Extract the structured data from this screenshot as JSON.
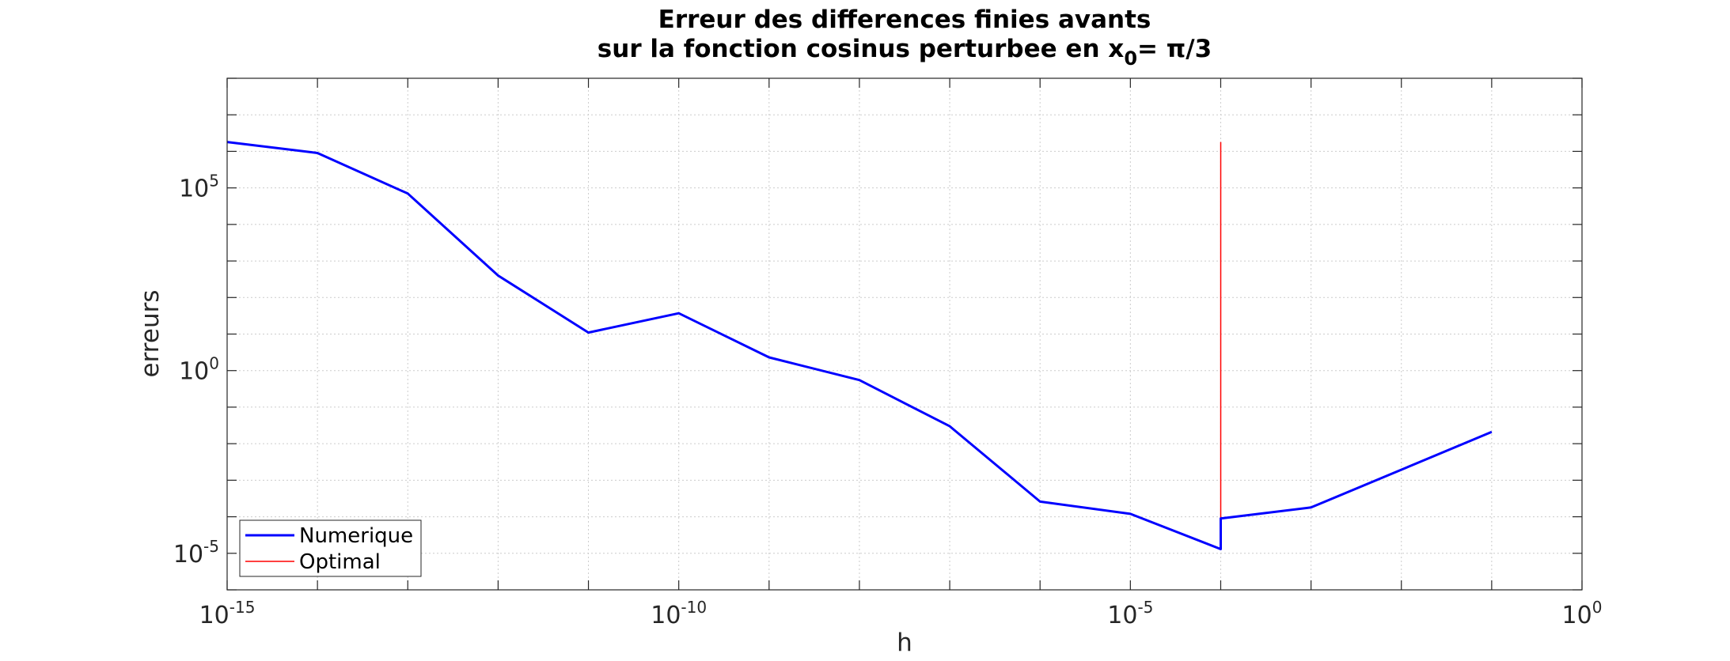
{
  "chart_data": {
    "type": "line",
    "title_line1": "Erreur des differences finies avants",
    "title_line2_prefix": "sur la fonction cosinus perturbee en x",
    "title_line2_subscript": "0",
    "title_line2_suffix": "= π/3",
    "xlabel": "h",
    "ylabel": "erreurs",
    "x_scale": "log",
    "y_scale": "log",
    "xlim": [
      1e-15,
      1
    ],
    "ylim": [
      1e-06,
      100000000.0
    ],
    "grid": true,
    "legend_position": "bottom-left",
    "x_ticks": [
      {
        "base": "10",
        "exp": "-15",
        "value": 1e-15
      },
      {
        "base": "10",
        "exp": "-10",
        "value": 1e-10
      },
      {
        "base": "10",
        "exp": "-5",
        "value": 1e-05
      },
      {
        "base": "10",
        "exp": "0",
        "value": 1
      }
    ],
    "y_ticks": [
      {
        "base": "10",
        "exp": "-5",
        "value": 1e-05
      },
      {
        "base": "10",
        "exp": "0",
        "value": 1
      },
      {
        "base": "10",
        "exp": "5",
        "value": 100000.0
      }
    ],
    "series": [
      {
        "name": "Numerique",
        "color": "#0000ff",
        "x": [
          1e-15,
          1e-14,
          1e-13,
          1e-12,
          1e-11,
          1e-10,
          1e-09,
          1e-08,
          1e-07,
          1e-06,
          1e-05,
          0.0001,
          0.0001,
          0.001,
          0.1
        ],
        "y": [
          1800000.0,
          900000.0,
          70000.0,
          400.0,
          11,
          37,
          2.3,
          0.55,
          0.03,
          0.00026,
          0.00012,
          1.3e-05,
          9e-05,
          0.00018,
          0.021
        ]
      },
      {
        "name": "Optimal",
        "color": "#ff0000",
        "x": [
          0.0001,
          0.0001
        ],
        "y": [
          1.3e-05,
          1800000.0
        ]
      }
    ]
  }
}
